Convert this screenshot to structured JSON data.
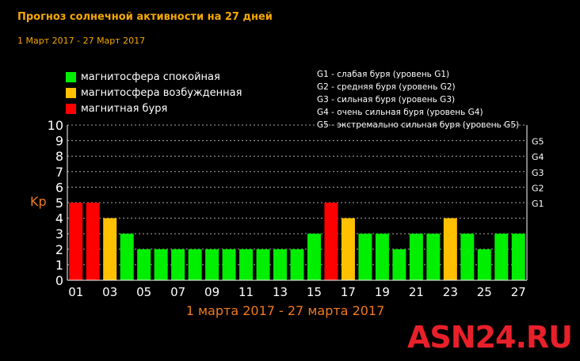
{
  "header": {
    "title": "Прогноз солнечной активности на 27 дней",
    "subtitle": "1 Март 2017 - 27 Март 2017"
  },
  "legend": {
    "items": [
      {
        "label": "магнитосфера спокойная",
        "color": "#00ee00"
      },
      {
        "label": "магнитосфера возбужденная",
        "color": "#ffc000"
      },
      {
        "label": "магнитная буря",
        "color": "#ff0000"
      }
    ],
    "storm_levels": [
      "G1 - слабая буря (уровень G1)",
      "G2 - средняя буря (уровень G2)",
      "G3 - сильная буря (уровень G3)",
      "G4 - очень сильная буря (уровень G4)",
      "G5 - экстремально сильная буря (уровень G5)"
    ]
  },
  "watermark": "ASN24.RU",
  "chart_data": {
    "type": "bar",
    "categories": [
      "01",
      "02",
      "03",
      "04",
      "05",
      "06",
      "07",
      "08",
      "09",
      "10",
      "11",
      "12",
      "13",
      "14",
      "15",
      "16",
      "17",
      "18",
      "19",
      "20",
      "21",
      "22",
      "23",
      "24",
      "25",
      "26",
      "27"
    ],
    "values": [
      5,
      5,
      4,
      3,
      2,
      2,
      2,
      2,
      2,
      2,
      2,
      2,
      2,
      2,
      3,
      5,
      4,
      3,
      3,
      2,
      3,
      3,
      4,
      3,
      2,
      3,
      3
    ],
    "bar_colors": [
      "#ff0000",
      "#ff0000",
      "#ffc000",
      "#00ee00",
      "#00ee00",
      "#00ee00",
      "#00ee00",
      "#00ee00",
      "#00ee00",
      "#00ee00",
      "#00ee00",
      "#00ee00",
      "#00ee00",
      "#00ee00",
      "#00ee00",
      "#ff0000",
      "#ffc000",
      "#00ee00",
      "#00ee00",
      "#00ee00",
      "#00ee00",
      "#00ee00",
      "#ffc000",
      "#00ee00",
      "#00ee00",
      "#00ee00",
      "#00ee00"
    ],
    "x_tick_labels": [
      "01",
      "03",
      "05",
      "07",
      "09",
      "11",
      "13",
      "15",
      "17",
      "19",
      "21",
      "23",
      "25",
      "27"
    ],
    "y_ticks": [
      "0",
      "1",
      "2",
      "3",
      "4",
      "5",
      "6",
      "7",
      "8",
      "9",
      "10"
    ],
    "right_ticks": [
      {
        "label": "G1",
        "y": 5
      },
      {
        "label": "G2",
        "y": 6
      },
      {
        "label": "G3",
        "y": 7
      },
      {
        "label": "G4",
        "y": 8
      },
      {
        "label": "G5",
        "y": 9
      }
    ],
    "ylabel": "Kp",
    "xlabel": "1 марта 2017 - 27 марта 2017",
    "ylim": [
      0,
      10
    ],
    "grid": true,
    "colors": {
      "axis": "#ffffff",
      "grid": "#aaaaaa",
      "label_accent": "#f07a20"
    }
  }
}
